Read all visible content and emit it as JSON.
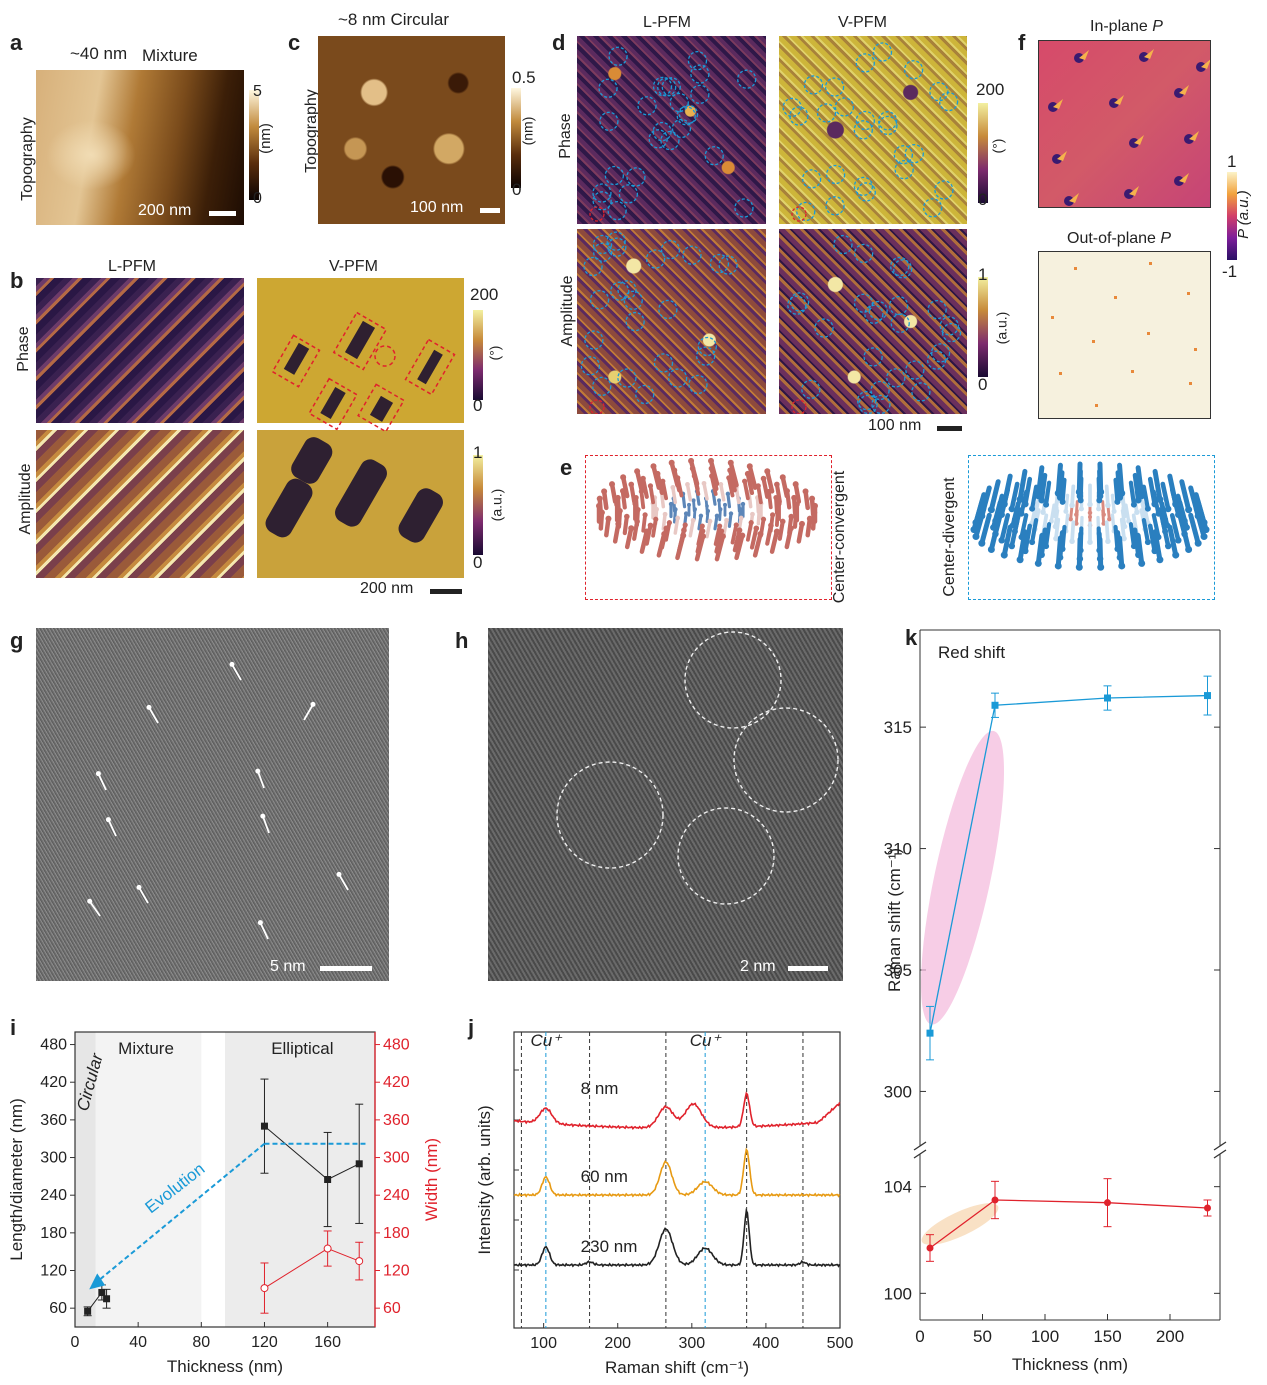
{
  "panels": {
    "a": {
      "label": "a",
      "thickness_text": "~40 nm",
      "mode_text": "Mixture",
      "ylabel": "Topography",
      "cbar_max": "5",
      "cbar_min": "0",
      "cbar_unit": "(nm)",
      "scalebar": "200 nm"
    },
    "b": {
      "label": "b",
      "col1": "L-PFM",
      "col2": "V-PFM",
      "row1": "Phase",
      "row2": "Amplitude",
      "phase_max": "200",
      "phase_min": "0",
      "phase_unit": "(°)",
      "amp_max": "1",
      "amp_min": "0",
      "amp_unit": "(a.u.)",
      "scalebar": "200 nm"
    },
    "c": {
      "label": "c",
      "title": "~8 nm Circular",
      "ylabel": "Topography",
      "cbar_max": "0.5",
      "cbar_min": "0",
      "cbar_unit": "(nm)",
      "scalebar": "100 nm"
    },
    "d": {
      "label": "d",
      "col1": "L-PFM",
      "col2": "V-PFM",
      "row1": "Phase",
      "row2": "Amplitude",
      "phase_max": "200",
      "phase_min": "0",
      "phase_unit": "(°)",
      "amp_max": "1",
      "amp_min": "0",
      "amp_unit": "(a.u.)",
      "scalebar": "100 nm"
    },
    "e": {
      "label": "e",
      "left_caption": "Center-convergent",
      "right_caption": "Center-divergent"
    },
    "f": {
      "label": "f",
      "top_title": "In-plane ",
      "bottom_title": "Out-of-plane ",
      "symbol": "P",
      "cbar_max": "1",
      "cbar_min": "-1",
      "cbar_label": "P (a.u.)"
    },
    "g": {
      "label": "g",
      "scalebar": "5 nm"
    },
    "h": {
      "label": "h",
      "scalebar": "2 nm"
    },
    "i": {
      "label": "i",
      "xlabel": "Thickness (nm)",
      "ylabel_left": "Length/diameter (nm)",
      "ylabel_right": "Width (nm)",
      "region_circular": "Circular",
      "region_mixture": "Mixture",
      "region_elliptical": "Elliptical",
      "arrow_label": "Evolution"
    },
    "j": {
      "label": "j",
      "xlabel": "Raman shift (cm⁻¹)",
      "ylabel": "Intensity (arb. units)",
      "cu_label": "Cu⁺",
      "traces": [
        "8 nm",
        "60 nm",
        "230 nm"
      ]
    },
    "k": {
      "label": "k",
      "xlabel": "Thickness (nm)",
      "ylabel": "Raman shift (cm⁻¹)",
      "annotation": "Red shift"
    }
  },
  "colors": {
    "blue": "#1a9ad7",
    "red": "#e0222c",
    "orange": "#e79a13",
    "black": "#222222",
    "pink": "#f3b8dc",
    "peach": "#f7dab6"
  },
  "chart_data": [
    {
      "type": "scatter",
      "id": "i",
      "xlabel": "Thickness (nm)",
      "ylabel": "Length/diameter (nm)",
      "y2label": "Width (nm)",
      "xlim": [
        0,
        190
      ],
      "ylim": [
        30,
        500
      ],
      "xticks": [
        0,
        40,
        80,
        120,
        160
      ],
      "yticks": [
        60,
        120,
        180,
        240,
        300,
        360,
        420,
        480
      ],
      "series": [
        {
          "name": "Length/diameter",
          "color": "#222222",
          "x": [
            8,
            17,
            20,
            120,
            160,
            180
          ],
          "y": [
            55,
            85,
            75,
            350,
            265,
            290
          ],
          "err": [
            7,
            12,
            15,
            75,
            75,
            95
          ]
        },
        {
          "name": "Width",
          "color": "#e0222c",
          "x": [
            120,
            160,
            180
          ],
          "y": [
            92,
            155,
            135
          ],
          "err": [
            40,
            28,
            30
          ]
        }
      ]
    },
    {
      "type": "line",
      "id": "j",
      "xlabel": "Raman shift (cm⁻¹)",
      "ylabel": "Intensity (arb. units)",
      "xlim": [
        60,
        500
      ],
      "xticks": [
        100,
        200,
        300,
        400,
        500
      ],
      "dashed_black": [
        70,
        162,
        265,
        374,
        450
      ],
      "dashed_blue": [
        103,
        318
      ],
      "series": [
        {
          "name": "8 nm",
          "color": "#e0222c",
          "offset": 2.0,
          "peaks": [
            [
              103,
              0.25,
              8
            ],
            [
              265,
              0.35,
              10
            ],
            [
              302,
              0.4,
              11
            ],
            [
              374,
              0.55,
              4
            ]
          ],
          "baseline": "curved"
        },
        {
          "name": "60 nm",
          "color": "#e79a13",
          "offset": 1.0,
          "peaks": [
            [
              103,
              0.3,
              5
            ],
            [
              265,
              0.55,
              8
            ],
            [
              318,
              0.22,
              10
            ],
            [
              374,
              0.75,
              4
            ]
          ],
          "baseline": "flat"
        },
        {
          "name": "230 nm",
          "color": "#222222",
          "offset": 0.0,
          "peaks": [
            [
              103,
              0.3,
              5
            ],
            [
              162,
              0.05,
              5
            ],
            [
              265,
              0.6,
              9
            ],
            [
              318,
              0.28,
              10
            ],
            [
              374,
              0.9,
              3.5
            ],
            [
              450,
              0.05,
              4
            ]
          ],
          "baseline": "flat"
        }
      ]
    },
    {
      "type": "line",
      "id": "k",
      "xlabel": "Thickness (nm)",
      "ylabel": "Raman shift (cm⁻¹)",
      "xlim": [
        0,
        240
      ],
      "xticks": [
        0,
        50,
        100,
        150,
        200
      ],
      "upper_ylim": [
        298,
        319
      ],
      "upper_yticks": [
        300,
        305,
        310,
        315
      ],
      "lower_ylim": [
        99,
        105
      ],
      "lower_yticks": [
        100,
        104
      ],
      "series": [
        {
          "name": "upper",
          "color": "#1a9ad7",
          "x": [
            8,
            60,
            150,
            230
          ],
          "y": [
            302.4,
            315.9,
            316.2,
            316.3
          ],
          "err": [
            1.1,
            0.5,
            0.5,
            0.8
          ]
        },
        {
          "name": "lower",
          "color": "#e0222c",
          "x": [
            8,
            60,
            150,
            230
          ],
          "y": [
            101.7,
            103.5,
            103.4,
            103.2
          ],
          "err": [
            0.5,
            0.7,
            0.9,
            0.3
          ]
        }
      ]
    }
  ]
}
